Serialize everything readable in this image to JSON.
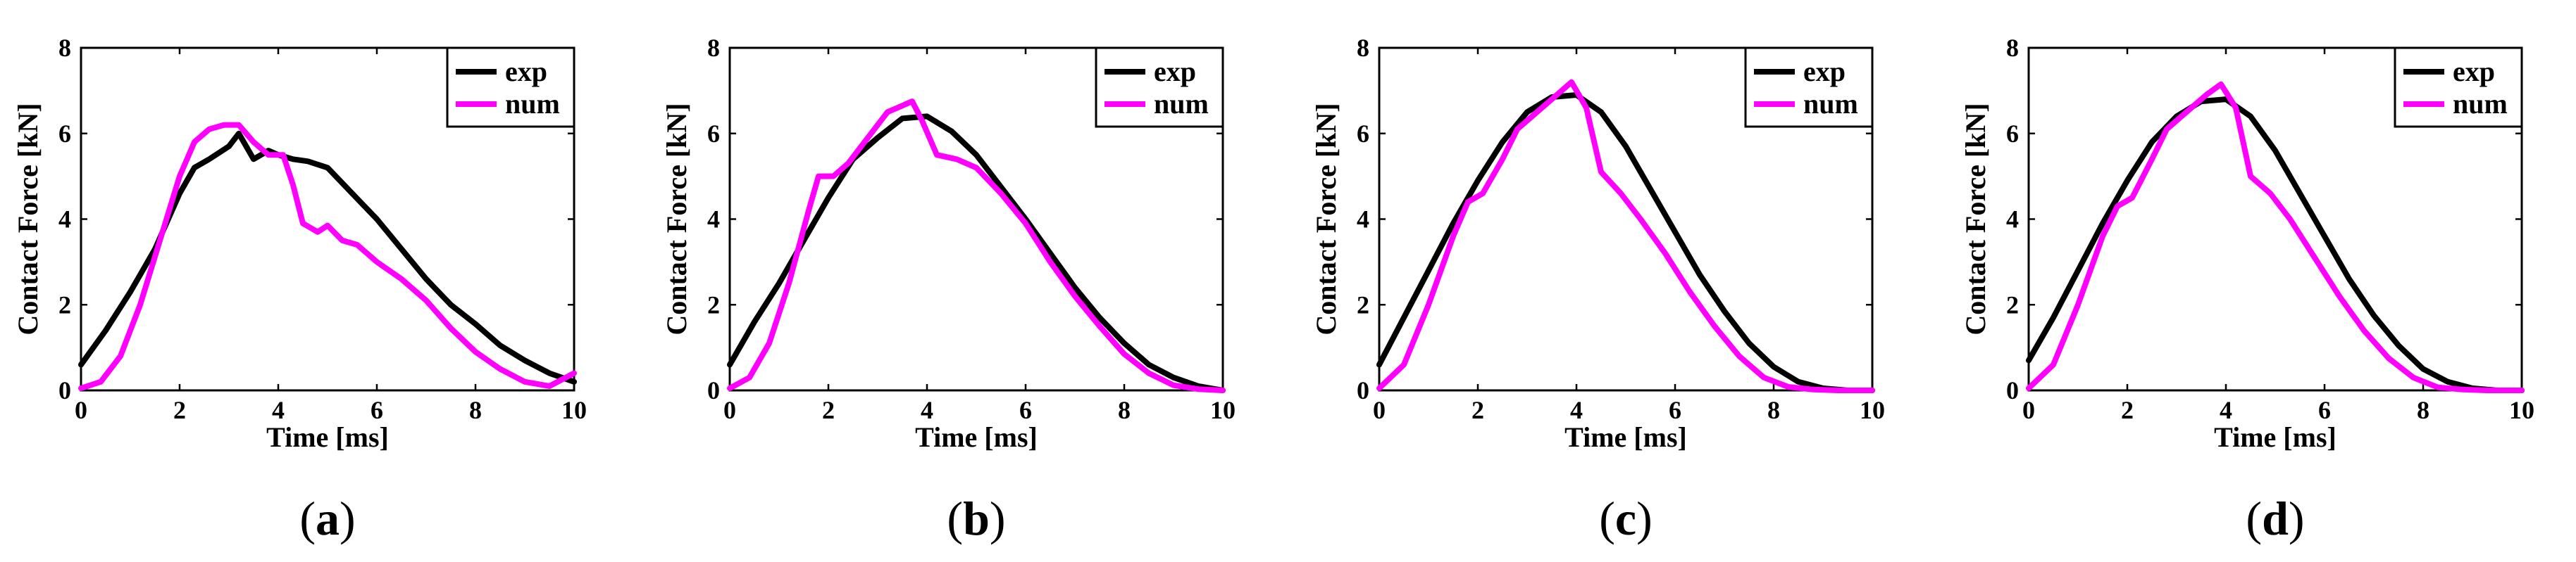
{
  "colors": {
    "exp": "#000000",
    "num": "#ff00ff"
  },
  "chart_data": [
    {
      "type": "line",
      "caption": "(a)",
      "caption_letter": "a",
      "xlabel": "Time [ms]",
      "ylabel": "Contact Force [kN]",
      "xlim": [
        0,
        10
      ],
      "ylim": [
        0,
        8
      ],
      "xticks": [
        "0",
        "2",
        "4",
        "6",
        "8",
        "10"
      ],
      "yticks": [
        "0",
        "2",
        "4",
        "6",
        "8"
      ],
      "legend": [
        "exp",
        "num"
      ],
      "series": [
        {
          "name": "exp",
          "x": [
            0,
            0.5,
            1,
            1.5,
            2,
            2.3,
            2.6,
            3,
            3.2,
            3.5,
            3.8,
            4,
            4.3,
            4.6,
            5,
            5.5,
            6,
            6.5,
            7,
            7.5,
            8,
            8.5,
            9,
            9.5,
            10
          ],
          "y": [
            0.6,
            1.4,
            2.3,
            3.3,
            4.6,
            5.2,
            5.4,
            5.7,
            6.0,
            5.4,
            5.6,
            5.5,
            5.4,
            5.35,
            5.2,
            4.6,
            4.0,
            3.3,
            2.6,
            2.0,
            1.55,
            1.05,
            0.7,
            0.4,
            0.2
          ]
        },
        {
          "name": "num",
          "x": [
            0,
            0.4,
            0.8,
            1.2,
            1.6,
            2,
            2.3,
            2.6,
            2.9,
            3.2,
            3.5,
            3.8,
            4.1,
            4.3,
            4.5,
            4.8,
            5,
            5.3,
            5.6,
            6,
            6.5,
            7,
            7.5,
            8,
            8.5,
            9,
            9.5,
            10
          ],
          "y": [
            0.05,
            0.2,
            0.8,
            2.0,
            3.5,
            5.0,
            5.8,
            6.1,
            6.2,
            6.2,
            5.8,
            5.5,
            5.5,
            4.8,
            3.9,
            3.7,
            3.85,
            3.5,
            3.4,
            3.0,
            2.6,
            2.1,
            1.45,
            0.9,
            0.5,
            0.2,
            0.1,
            0.4
          ]
        }
      ]
    },
    {
      "type": "line",
      "caption": "(b)",
      "caption_letter": "b",
      "xlabel": "Time [ms]",
      "ylabel": "Contact Force [kN]",
      "xlim": [
        0,
        10
      ],
      "ylim": [
        0,
        8
      ],
      "xticks": [
        "0",
        "2",
        "4",
        "6",
        "8",
        "10"
      ],
      "yticks": [
        "0",
        "2",
        "4",
        "6",
        "8"
      ],
      "legend": [
        "exp",
        "num"
      ],
      "series": [
        {
          "name": "exp",
          "x": [
            0,
            0.5,
            1,
            1.5,
            2,
            2.5,
            3,
            3.5,
            4,
            4.5,
            5,
            5.5,
            6,
            6.5,
            7,
            7.5,
            8,
            8.5,
            9,
            9.5,
            10
          ],
          "y": [
            0.6,
            1.6,
            2.5,
            3.5,
            4.5,
            5.4,
            5.9,
            6.35,
            6.4,
            6.05,
            5.5,
            4.75,
            4.0,
            3.2,
            2.4,
            1.7,
            1.1,
            0.6,
            0.3,
            0.1,
            0.0
          ]
        },
        {
          "name": "num",
          "x": [
            0,
            0.4,
            0.8,
            1.2,
            1.6,
            1.8,
            2.1,
            2.4,
            2.8,
            3.2,
            3.7,
            3.9,
            4.2,
            4.6,
            5,
            5.5,
            6,
            6.5,
            7,
            7.5,
            8,
            8.5,
            9,
            9.5,
            10
          ],
          "y": [
            0.05,
            0.3,
            1.1,
            2.5,
            4.2,
            5.0,
            5.0,
            5.3,
            5.9,
            6.5,
            6.75,
            6.3,
            5.5,
            5.4,
            5.2,
            4.6,
            3.9,
            3.0,
            2.2,
            1.5,
            0.85,
            0.4,
            0.12,
            0.03,
            0.0
          ]
        }
      ]
    },
    {
      "type": "line",
      "caption": "(c)",
      "caption_letter": "c",
      "xlabel": "Time [ms]",
      "ylabel": "Contact Force [kN]",
      "xlim": [
        0,
        10
      ],
      "ylim": [
        0,
        8
      ],
      "xticks": [
        "0",
        "2",
        "4",
        "6",
        "8",
        "10"
      ],
      "yticks": [
        "0",
        "2",
        "4",
        "6",
        "8"
      ],
      "legend": [
        "exp",
        "num"
      ],
      "series": [
        {
          "name": "exp",
          "x": [
            0,
            0.5,
            1,
            1.5,
            2,
            2.5,
            3,
            3.5,
            4,
            4.5,
            5,
            5.5,
            6,
            6.5,
            7,
            7.5,
            8,
            8.5,
            9,
            9.5,
            10
          ],
          "y": [
            0.6,
            1.7,
            2.8,
            3.9,
            4.9,
            5.8,
            6.5,
            6.85,
            6.9,
            6.5,
            5.7,
            4.7,
            3.7,
            2.7,
            1.85,
            1.1,
            0.55,
            0.2,
            0.05,
            0.0,
            0.0
          ]
        },
        {
          "name": "num",
          "x": [
            0,
            0.5,
            1,
            1.5,
            1.8,
            2.1,
            2.5,
            2.8,
            3.2,
            3.6,
            3.9,
            4.2,
            4.5,
            4.9,
            5.3,
            5.8,
            6.3,
            6.8,
            7.3,
            7.8,
            8.3,
            8.8,
            9.3,
            9.7,
            10
          ],
          "y": [
            0.05,
            0.6,
            2.0,
            3.6,
            4.4,
            4.6,
            5.4,
            6.1,
            6.5,
            6.9,
            7.2,
            6.6,
            5.1,
            4.6,
            4.0,
            3.2,
            2.3,
            1.5,
            0.8,
            0.3,
            0.08,
            0.02,
            0.0,
            0.0,
            0.0
          ]
        }
      ]
    },
    {
      "type": "line",
      "caption": "(d)",
      "caption_letter": "d",
      "xlabel": "Time [ms]",
      "ylabel": "Contact Force [kN]",
      "xlim": [
        0,
        10
      ],
      "ylim": [
        0,
        8
      ],
      "xticks": [
        "0",
        "2",
        "4",
        "6",
        "8",
        "10"
      ],
      "yticks": [
        "0",
        "2",
        "4",
        "6",
        "8"
      ],
      "legend": [
        "exp",
        "num"
      ],
      "series": [
        {
          "name": "exp",
          "x": [
            0,
            0.5,
            1,
            1.5,
            2,
            2.5,
            3,
            3.5,
            4,
            4.5,
            5,
            5.5,
            6,
            6.5,
            7,
            7.5,
            8,
            8.5,
            9,
            9.5,
            10
          ],
          "y": [
            0.7,
            1.7,
            2.8,
            3.9,
            4.9,
            5.8,
            6.4,
            6.75,
            6.8,
            6.4,
            5.6,
            4.6,
            3.6,
            2.6,
            1.75,
            1.05,
            0.5,
            0.2,
            0.05,
            0.0,
            0.0
          ]
        },
        {
          "name": "num",
          "x": [
            0,
            0.5,
            1,
            1.5,
            1.8,
            2.1,
            2.5,
            2.8,
            3.2,
            3.6,
            3.9,
            4.2,
            4.5,
            4.9,
            5.3,
            5.8,
            6.3,
            6.8,
            7.3,
            7.8,
            8.3,
            8.8,
            9.3,
            9.7,
            10
          ],
          "y": [
            0.05,
            0.6,
            2.0,
            3.6,
            4.3,
            4.5,
            5.4,
            6.1,
            6.5,
            6.9,
            7.15,
            6.6,
            5.0,
            4.6,
            4.0,
            3.1,
            2.2,
            1.4,
            0.75,
            0.3,
            0.07,
            0.02,
            0.0,
            0.0,
            0.0
          ]
        }
      ]
    }
  ]
}
